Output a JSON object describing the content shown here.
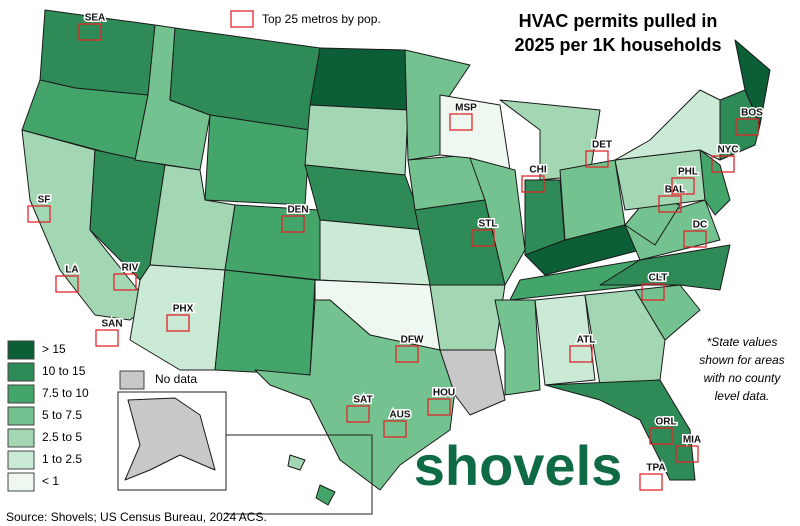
{
  "title": [
    "HVAC permits pulled in",
    "2025 per 1K  households"
  ],
  "legend": {
    "items": [
      {
        "label": "> 15",
        "color": "#0b5e35"
      },
      {
        "label": "10 to 15",
        "color": "#2e8b57"
      },
      {
        "label": "7.5 to 10",
        "color": "#44a56b"
      },
      {
        "label": "5 to 7.5",
        "color": "#74c28f"
      },
      {
        "label": "2.5 to 5",
        "color": "#a3d7b4"
      },
      {
        "label": "1 to 2.5",
        "color": "#cbead6"
      },
      {
        "label": "< 1",
        "color": "#eef8f0"
      }
    ],
    "no_data": {
      "label": "No data",
      "color": "#c8c8c8"
    },
    "metros": {
      "label": "Top 25 metros by pop.",
      "color": "#e0262b"
    }
  },
  "metros": [
    "SEA",
    "SF",
    "LA",
    "SAN",
    "RIV",
    "PHX",
    "DEN",
    "MSP",
    "CHI",
    "DET",
    "STL",
    "DFW",
    "AUS",
    "SAT",
    "HOU",
    "ATL",
    "CLT",
    "DC",
    "BAL",
    "PHL",
    "NYC",
    "BOS",
    "TPA",
    "ORL",
    "MIA"
  ],
  "note": [
    "*State values",
    "shown for areas",
    "with no county",
    "level data."
  ],
  "logo": "shovels",
  "source": "Source: Shovels; US Census Bureau, 2024 ACS."
}
